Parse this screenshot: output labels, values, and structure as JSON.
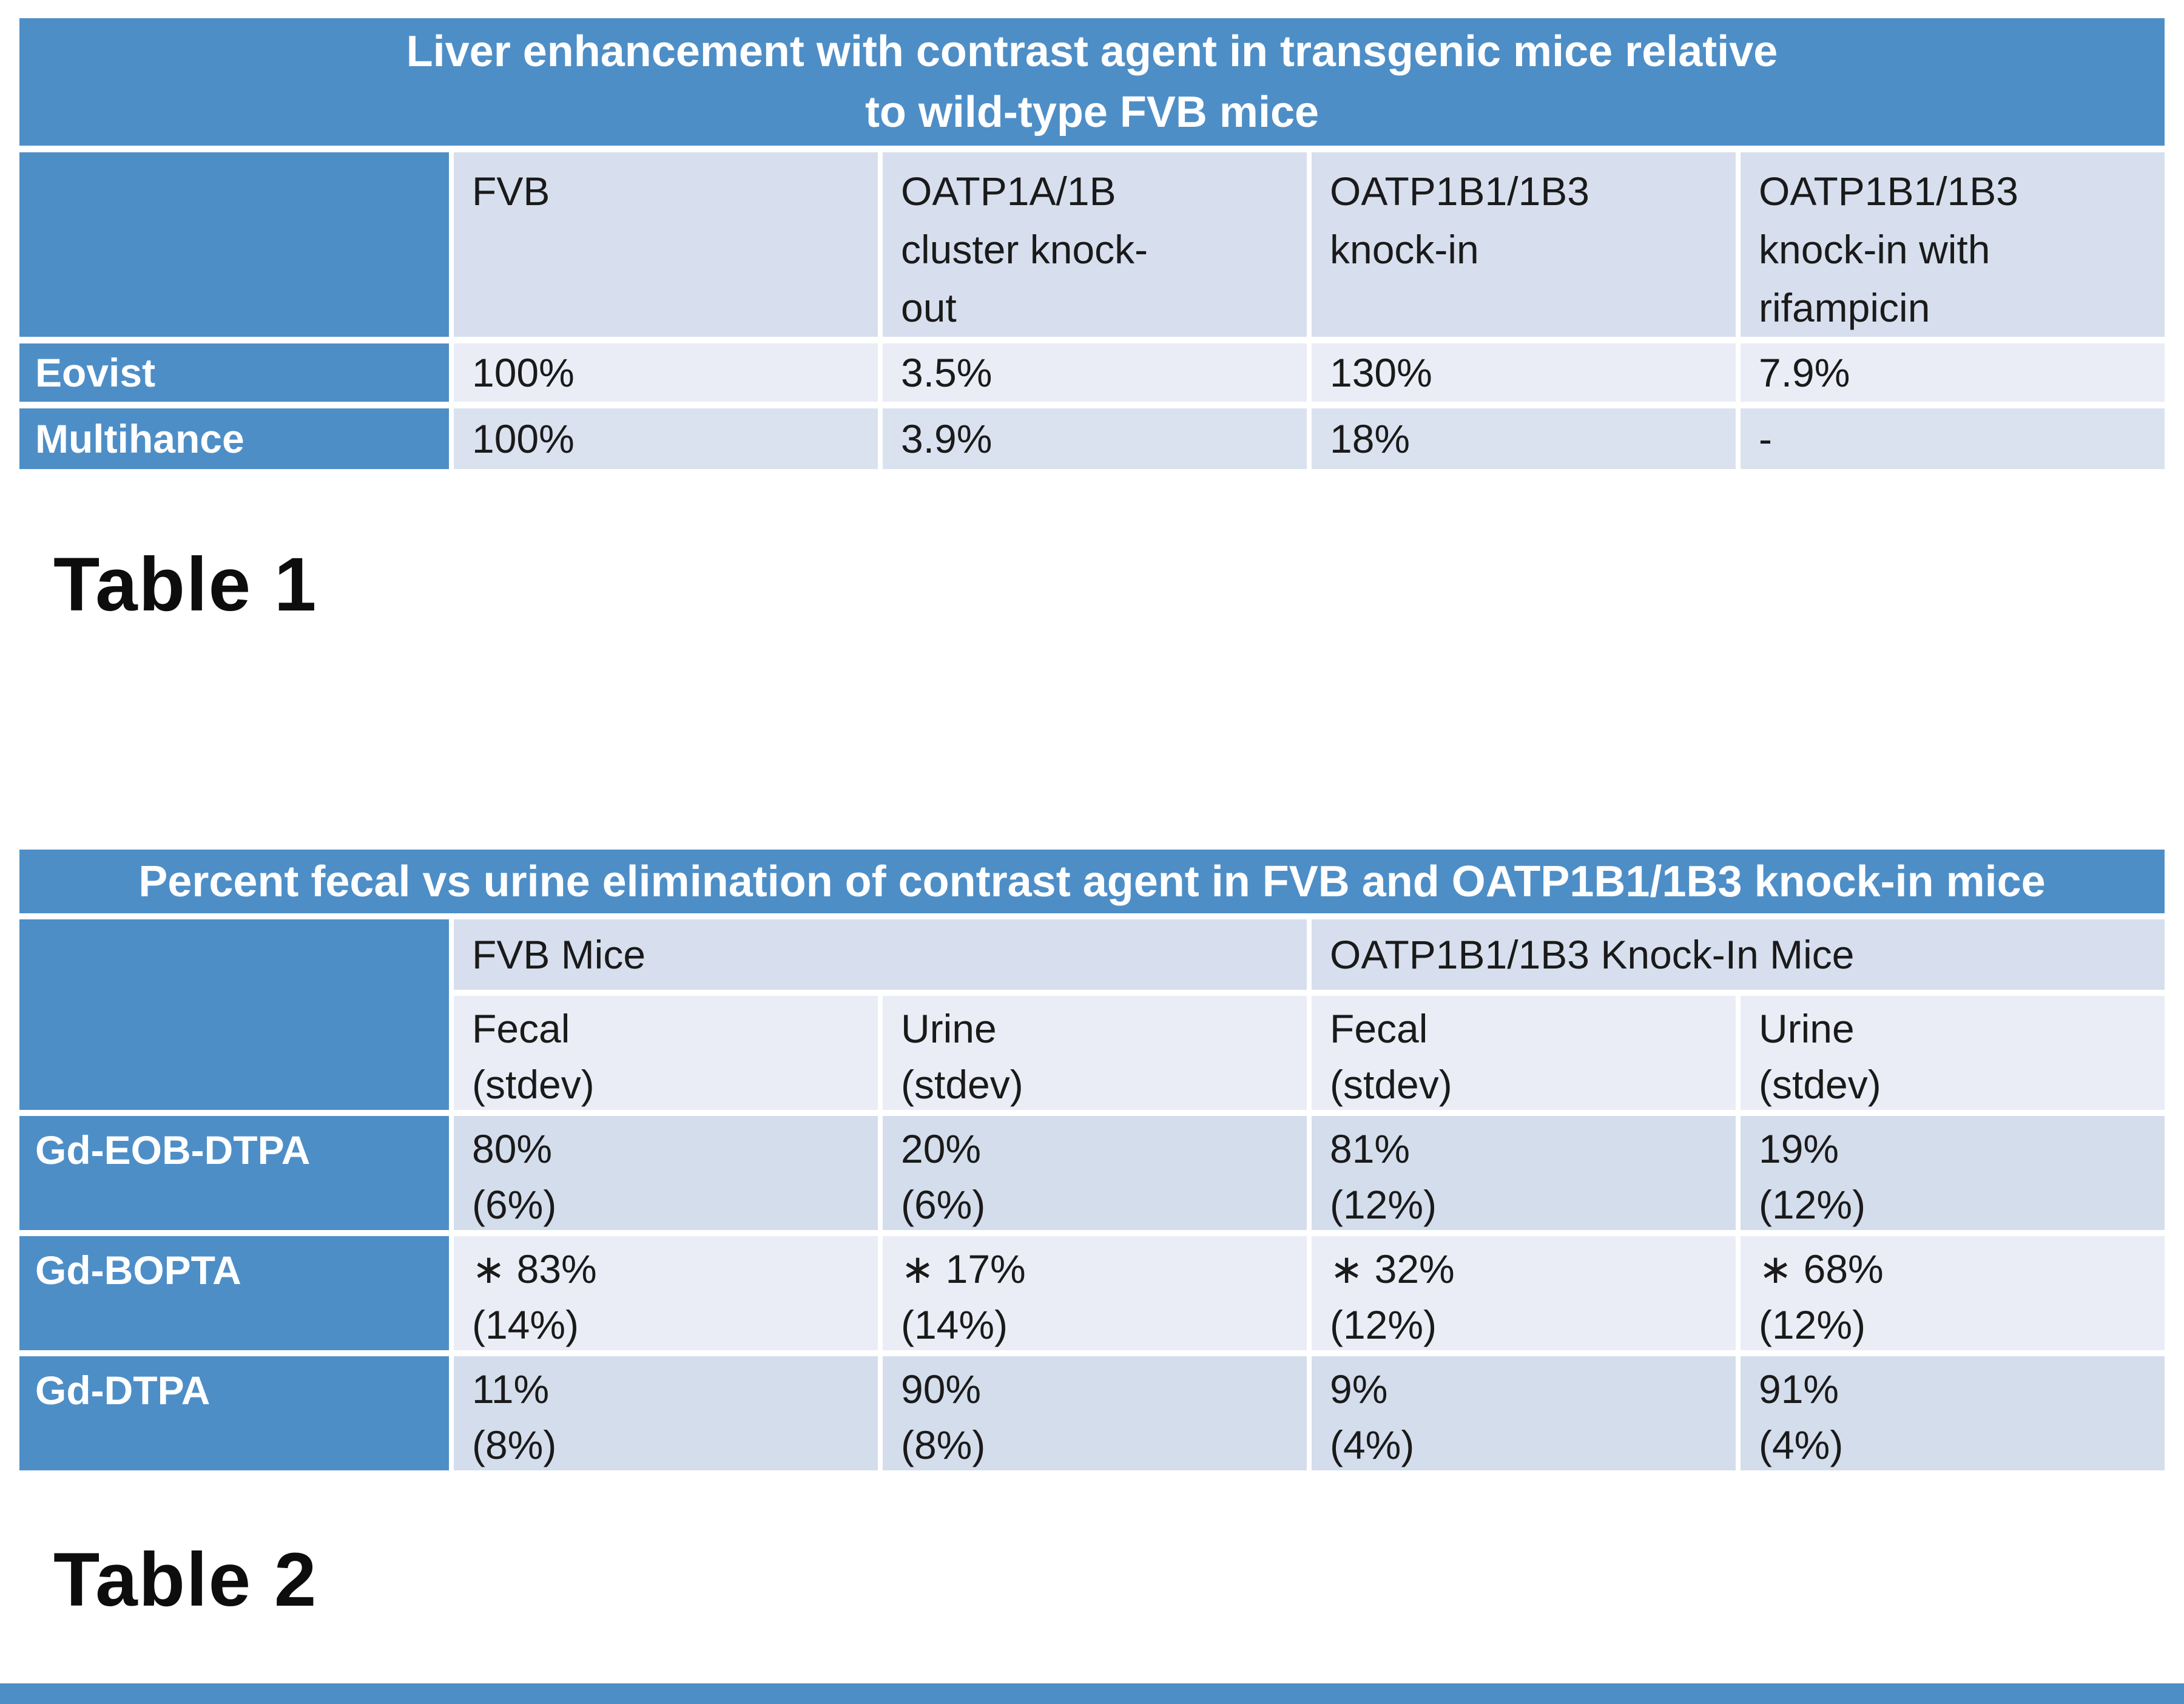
{
  "colors": {
    "accent": "#4E8EC7",
    "band_header": "#D7DFEE",
    "band_light": "#EAEDF5",
    "band_mid": "#DAE2F0",
    "band_dark": "#D4DDEC",
    "text_dark": "#1a1a1a",
    "text_light": "#FFFFFF"
  },
  "captions": {
    "table1": "Table 1",
    "table2": "Table 2"
  },
  "table1": {
    "title": "Liver enhancement with contrast agent in transgenic mice relative\nto wild-type FVB mice",
    "columns": [
      "FVB",
      "OATP1A/1B\ncluster knock-\nout",
      "OATP1B1/1B3\nknock-in",
      "OATP1B1/1B3\nknock-in with\nrifampicin"
    ],
    "rows": [
      {
        "label": "Eovist",
        "values": [
          "100%",
          "3.5%",
          "130%",
          "7.9%"
        ]
      },
      {
        "label": "Multihance",
        "values": [
          "100%",
          "3.9%",
          "18%",
          "-"
        ]
      }
    ]
  },
  "table2": {
    "title": "Percent fecal vs urine elimination of contrast agent in FVB and OATP1B1/1B3 knock-in mice",
    "groups": [
      "FVB Mice",
      "OATP1B1/1B3 Knock-In Mice"
    ],
    "subheaders": [
      "Fecal\n(stdev)",
      "Urine\n(stdev)",
      "Fecal\n(stdev)",
      "Urine\n(stdev)"
    ],
    "rows": [
      {
        "label": "Gd-EOB-DTPA",
        "cells": [
          "80%\n(6%)",
          "20%\n(6%)",
          "81%\n(12%)",
          "19%\n(12%)"
        ]
      },
      {
        "label": "Gd-BOPTA",
        "cells": [
          "∗ 83%\n(14%)",
          "∗ 17%\n(14%)",
          "∗ 32%\n(12%)",
          "∗ 68%\n(12%)"
        ]
      },
      {
        "label": "Gd-DTPA",
        "cells": [
          "11%\n(8%)",
          "90%\n(8%)",
          "9%\n(4%)",
          "91%\n(4%)"
        ]
      }
    ]
  }
}
